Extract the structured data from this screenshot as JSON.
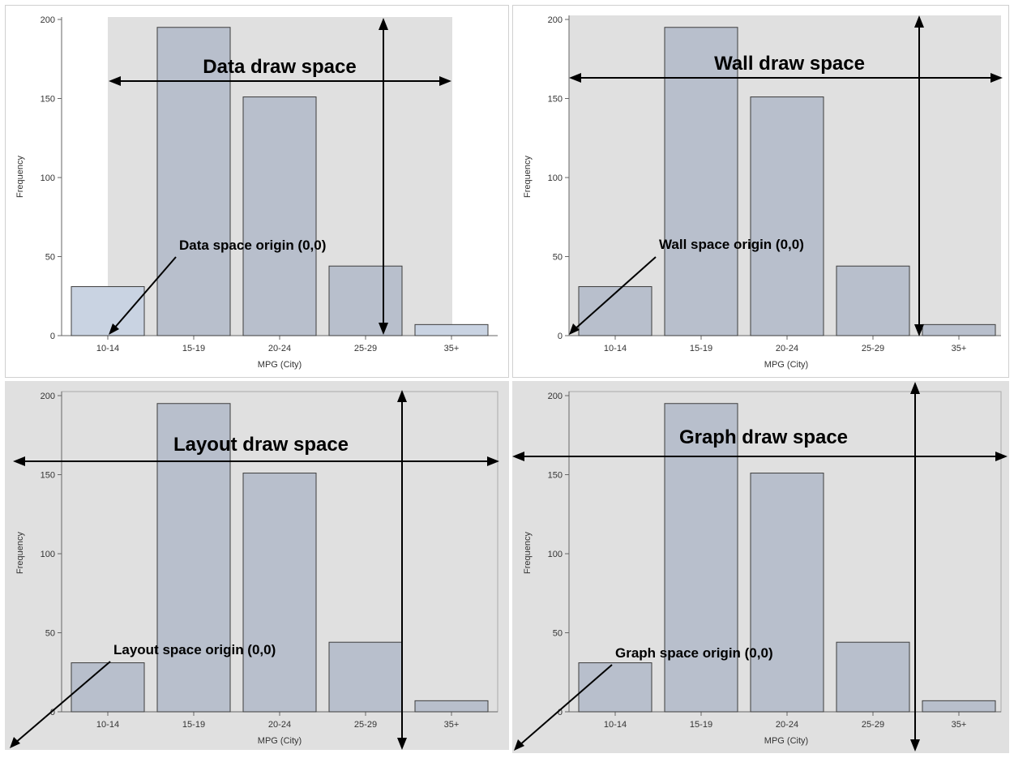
{
  "colors": {
    "bar_fill": "#b8bfcc",
    "bar_fill_light": "#c9d3e2",
    "bar_stroke": "#3d3d3d",
    "shade": "#e0e0e0",
    "panel_border": "#d0d0d0",
    "arrow": "#000000"
  },
  "chart_data": [
    {
      "type": "bar",
      "panel": "data",
      "categories": [
        "10-14",
        "15-19",
        "20-24",
        "25-29",
        "35+"
      ],
      "values": [
        31,
        195,
        151,
        44,
        7
      ],
      "xlabel": "MPG (City)",
      "ylabel": "Frequency",
      "yticks": [
        "0",
        "50",
        "100",
        "150",
        "200"
      ],
      "ylim": [
        0,
        200
      ],
      "shaded_region": "data area",
      "annotation_title": "Data draw space",
      "annotation_origin": "Data space origin (0,0)"
    },
    {
      "type": "bar",
      "panel": "wall",
      "categories": [
        "10-14",
        "15-19",
        "20-24",
        "25-29",
        "35+"
      ],
      "values": [
        31,
        195,
        151,
        44,
        7
      ],
      "xlabel": "MPG (City)",
      "ylabel": "Frequency",
      "yticks": [
        "0",
        "50",
        "100",
        "150",
        "200"
      ],
      "ylim": [
        0,
        200
      ],
      "shaded_region": "wall area",
      "annotation_title": "Wall draw space",
      "annotation_origin": "Wall space origin (0,0)"
    },
    {
      "type": "bar",
      "panel": "layout",
      "categories": [
        "10-14",
        "15-19",
        "20-24",
        "25-29",
        "35+"
      ],
      "values": [
        31,
        195,
        151,
        44,
        7
      ],
      "xlabel": "MPG (City)",
      "ylabel": "Frequency",
      "yticks": [
        "0",
        "50",
        "100",
        "150",
        "200"
      ],
      "ylim": [
        0,
        200
      ],
      "shaded_region": "layout area",
      "annotation_title": "Layout draw space",
      "annotation_origin": "Layout space origin (0,0)"
    },
    {
      "type": "bar",
      "panel": "graph",
      "categories": [
        "10-14",
        "15-19",
        "20-24",
        "25-29",
        "35+"
      ],
      "values": [
        31,
        195,
        151,
        44,
        7
      ],
      "xlabel": "MPG (City)",
      "ylabel": "Frequency",
      "yticks": [
        "0",
        "50",
        "100",
        "150",
        "200"
      ],
      "ylim": [
        0,
        200
      ],
      "shaded_region": "whole graph",
      "annotation_title": "Graph draw space",
      "annotation_origin": "Graph space origin (0,0)"
    }
  ]
}
